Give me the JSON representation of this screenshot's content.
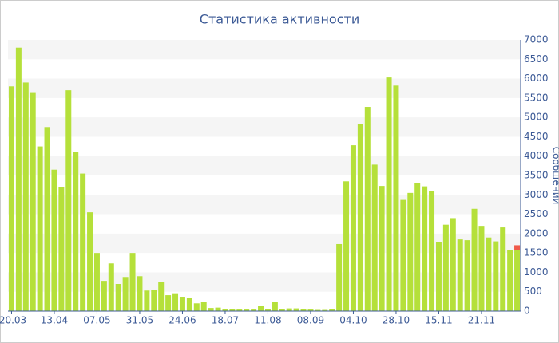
{
  "chart_data": {
    "type": "bar",
    "title": "Статистика активности",
    "y_label": "Сообщений",
    "categories": [
      "20.03",
      null,
      null,
      null,
      null,
      null,
      "13.04",
      null,
      null,
      null,
      null,
      null,
      "07.05",
      null,
      null,
      null,
      null,
      null,
      "31.05",
      null,
      null,
      null,
      null,
      null,
      "24.06",
      null,
      null,
      null,
      null,
      null,
      "18.07",
      null,
      null,
      null,
      null,
      null,
      "11.08",
      null,
      null,
      null,
      null,
      null,
      "08.09",
      null,
      null,
      null,
      null,
      null,
      "04.10",
      null,
      null,
      null,
      null,
      null,
      "28.10",
      null,
      null,
      null,
      null,
      null,
      "15.11",
      null,
      null,
      null,
      null,
      null,
      "21.11",
      null,
      null,
      null,
      null,
      null
    ],
    "series": [
      {
        "color": "#b5e03a",
        "values": [
          5800,
          6800,
          5900,
          5650,
          4250,
          4750,
          3650,
          3200,
          5700,
          4100,
          3550,
          2550,
          1500,
          780,
          1230,
          700,
          880,
          1500,
          900,
          530,
          550,
          760,
          410,
          460,
          370,
          340,
          200,
          230,
          80,
          90,
          60,
          50,
          40,
          40,
          40,
          130,
          50,
          230,
          50,
          70,
          70,
          50,
          40,
          30,
          30,
          50,
          1730,
          3350,
          4280,
          4830,
          5270,
          3780,
          3230,
          6030,
          5820,
          2870,
          3050,
          3300,
          3220,
          3100,
          1780,
          2230,
          2400,
          1850,
          1830,
          2640,
          2200,
          1900,
          1800,
          2160,
          1580,
          1580
        ]
      },
      {
        "color": "#f05a4a",
        "values": [
          null,
          null,
          null,
          null,
          null,
          null,
          null,
          null,
          null,
          null,
          null,
          null,
          null,
          null,
          null,
          null,
          null,
          null,
          null,
          null,
          null,
          null,
          null,
          null,
          null,
          null,
          null,
          null,
          null,
          null,
          null,
          null,
          null,
          null,
          null,
          null,
          null,
          null,
          null,
          null,
          null,
          null,
          null,
          null,
          null,
          null,
          null,
          null,
          null,
          null,
          null,
          null,
          null,
          null,
          null,
          null,
          null,
          null,
          null,
          null,
          null,
          null,
          null,
          null,
          null,
          null,
          null,
          null,
          null,
          null,
          null,
          120
        ]
      }
    ],
    "ylim": [
      0,
      7000
    ],
    "yticks": [
      0,
      500,
      1000,
      1500,
      2000,
      2500,
      3000,
      3500,
      4000,
      4500,
      5000,
      5500,
      6000,
      6500,
      7000
    ],
    "grid": true
  }
}
